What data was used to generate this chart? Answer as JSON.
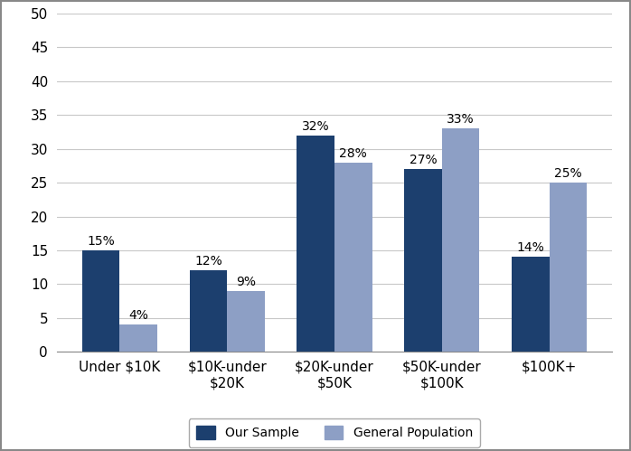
{
  "categories": [
    "Under $10K",
    "$10K-under\n$20K",
    "$20K-under\n$50K",
    "$50K-under\n$100K",
    "$100K+"
  ],
  "our_sample": [
    15,
    12,
    32,
    27,
    14
  ],
  "general_pop": [
    4,
    9,
    28,
    33,
    25
  ],
  "our_sample_color": "#1c3f6e",
  "general_pop_color": "#8d9fc5",
  "our_sample_label": "Our Sample",
  "general_pop_label": "General Population",
  "ylim": [
    0,
    50
  ],
  "yticks": [
    0,
    5,
    10,
    15,
    20,
    25,
    30,
    35,
    40,
    45,
    50
  ],
  "bar_width": 0.35,
  "background_color": "#ffffff",
  "plot_bg_color": "#ffffff",
  "grid_color": "#c8c8c8",
  "border_color": "#aaaaaa",
  "tick_fontsize": 11,
  "legend_fontsize": 10,
  "annotation_fontsize": 10
}
